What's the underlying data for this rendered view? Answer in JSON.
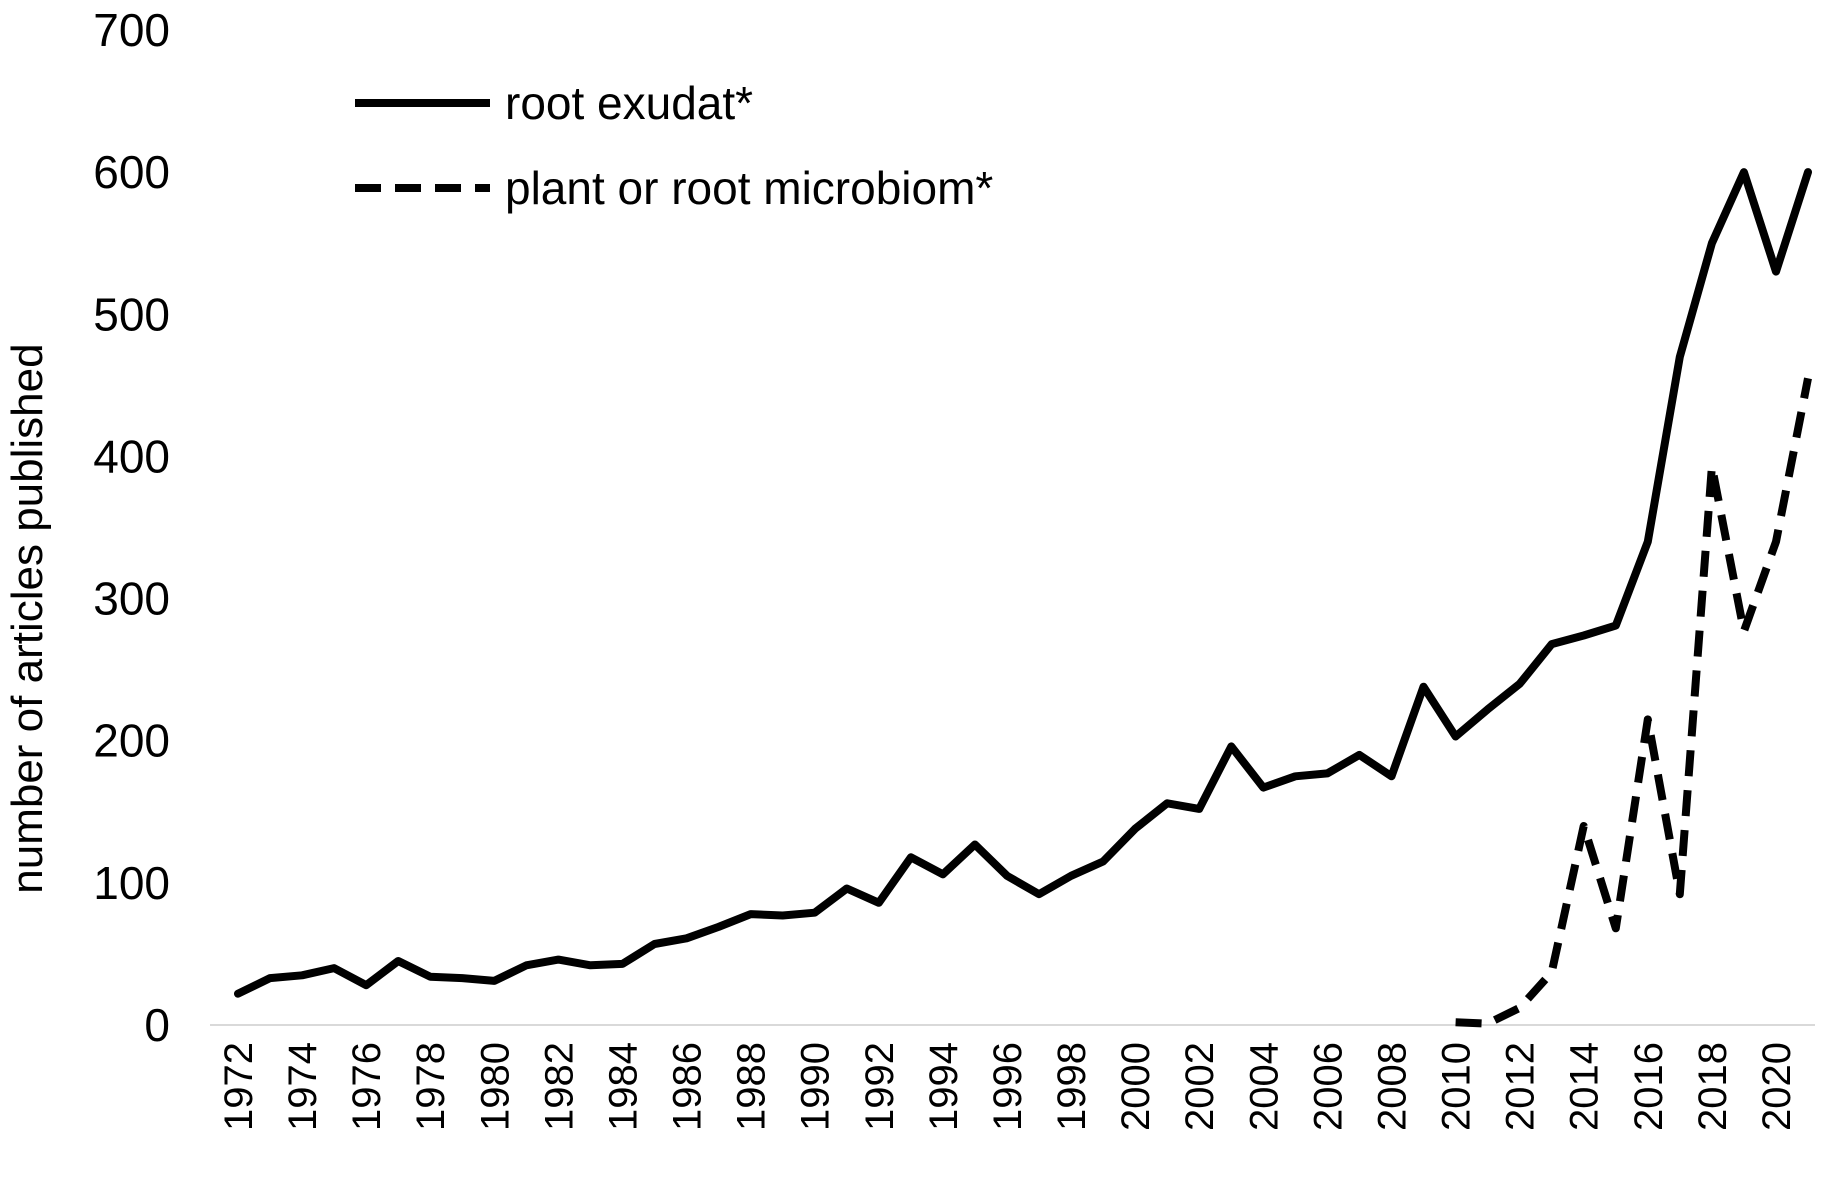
{
  "chart_data": {
    "type": "line",
    "title": "",
    "xlabel": "",
    "ylabel": "number of articles published",
    "ylim": [
      0,
      700
    ],
    "yticks": [
      0,
      100,
      200,
      300,
      400,
      500,
      600,
      700
    ],
    "x": [
      1972,
      1973,
      1974,
      1975,
      1976,
      1977,
      1978,
      1979,
      1980,
      1981,
      1982,
      1983,
      1984,
      1985,
      1986,
      1987,
      1988,
      1989,
      1990,
      1991,
      1992,
      1993,
      1994,
      1995,
      1996,
      1997,
      1998,
      1999,
      2000,
      2001,
      2002,
      2003,
      2004,
      2005,
      2006,
      2007,
      2008,
      2009,
      2010,
      2011,
      2012,
      2013,
      2014,
      2015,
      2016,
      2017,
      2018,
      2019,
      2020,
      2021
    ],
    "xtick_labels": [
      "1972",
      "1974",
      "1976",
      "1978",
      "1980",
      "1982",
      "1984",
      "1986",
      "1988",
      "1990",
      "1992",
      "1994",
      "1996",
      "1998",
      "2000",
      "2002",
      "2004",
      "2006",
      "2008",
      "2010",
      "2012",
      "2014",
      "2016",
      "2018",
      "2020"
    ],
    "grid": false,
    "legend_position": "top-left",
    "series": [
      {
        "name": "root exudat*",
        "style": "solid",
        "color": "#000000",
        "values": [
          22,
          33,
          35,
          40,
          28,
          45,
          34,
          33,
          31,
          42,
          46,
          42,
          43,
          57,
          61,
          69,
          78,
          77,
          79,
          96,
          86,
          118,
          106,
          127,
          105,
          92,
          105,
          115,
          138,
          156,
          152,
          196,
          167,
          175,
          177,
          190,
          175,
          238,
          203,
          222,
          240,
          268,
          274,
          281,
          340,
          470,
          550,
          600,
          530,
          600
        ]
      },
      {
        "name": "plant or root microbiom*",
        "style": "dashed",
        "color": "#000000",
        "x": [
          2010,
          2011,
          2012,
          2013,
          2014,
          2015,
          2016,
          2017,
          2018,
          2019,
          2020,
          2021
        ],
        "values": [
          2,
          1,
          12,
          37,
          140,
          68,
          215,
          92,
          393,
          277,
          340,
          455
        ]
      }
    ]
  }
}
